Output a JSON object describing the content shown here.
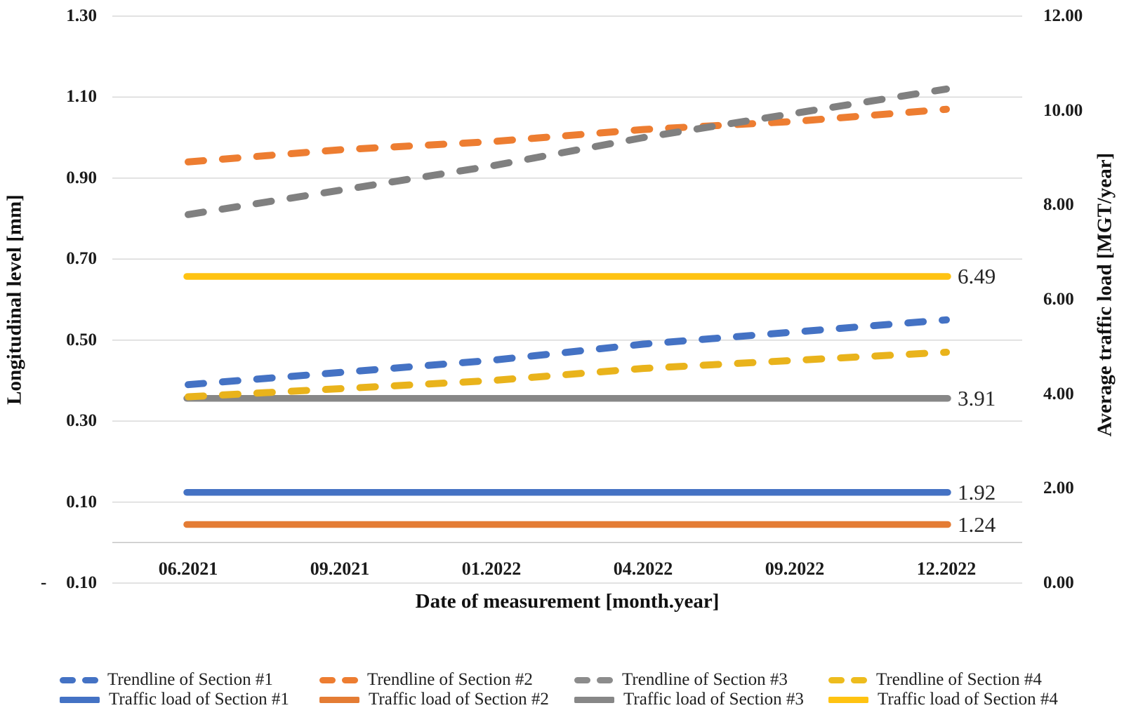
{
  "chart_data": {
    "type": "line",
    "title": "",
    "xlabel": "Date of measurement [month.year]",
    "ylabel_left": "Longitudinal level [mm]",
    "ylabel_right": "Average traffic load [MGT/year]",
    "categories": [
      "06.2021",
      "09.2021",
      "01.2022",
      "04.2022",
      "09.2022",
      "12.2022"
    ],
    "grid": true,
    "legend_position": "bottom",
    "left_axis": {
      "min": -0.1,
      "max": 1.3,
      "tick_step": 0.2,
      "ticks": [
        {
          "label": "1.30",
          "value": 1.3
        },
        {
          "label": "1.10",
          "value": 1.1
        },
        {
          "label": "0.90",
          "value": 0.9
        },
        {
          "label": "0.70",
          "value": 0.7
        },
        {
          "label": "0.50",
          "value": 0.5
        },
        {
          "label": "0.30",
          "value": 0.3
        },
        {
          "label": "0.10",
          "value": 0.1
        },
        {
          "label": "- 0.10",
          "value": -0.1
        }
      ]
    },
    "right_axis": {
      "min": 0.0,
      "max": 12.0,
      "tick_step": 2.0,
      "ticks": [
        {
          "label": "12.00",
          "value": 12.0
        },
        {
          "label": "10.00",
          "value": 10.0
        },
        {
          "label": "8.00",
          "value": 8.0
        },
        {
          "label": "6.00",
          "value": 6.0
        },
        {
          "label": "4.00",
          "value": 4.0
        },
        {
          "label": "2.00",
          "value": 2.0
        },
        {
          "label": "0.00",
          "value": 0.0
        }
      ]
    },
    "series": [
      {
        "name": "Trendline of Section #1",
        "axis": "left",
        "line": "dashed",
        "color": "#4472C4",
        "values": [
          0.39,
          0.42,
          0.45,
          0.49,
          0.52,
          0.55
        ]
      },
      {
        "name": "Trendline of Section #2",
        "axis": "left",
        "line": "dashed",
        "color": "#ED7D31",
        "values": [
          0.94,
          0.97,
          0.99,
          1.02,
          1.04,
          1.07
        ]
      },
      {
        "name": "Trendline of Section #3",
        "axis": "left",
        "line": "dashed",
        "color": "#808080",
        "values": [
          0.81,
          0.87,
          0.93,
          1.0,
          1.06,
          1.12
        ]
      },
      {
        "name": "Trendline of Section #4",
        "axis": "left",
        "line": "dashed",
        "color": "#E9B31B",
        "values": [
          0.36,
          0.38,
          0.4,
          0.43,
          0.45,
          0.47
        ]
      },
      {
        "name": "Traffic load of Section #1",
        "axis": "right",
        "line": "solid",
        "color": "#4472C4",
        "values": [
          1.92,
          1.92,
          1.92,
          1.92,
          1.92,
          1.92
        ],
        "data_label": "1.92"
      },
      {
        "name": "Traffic load of Section #2",
        "axis": "right",
        "line": "solid",
        "color": "#E47C34",
        "values": [
          1.24,
          1.24,
          1.24,
          1.24,
          1.24,
          1.24
        ],
        "data_label": "1.24"
      },
      {
        "name": "Traffic load of Section #3",
        "axis": "right",
        "line": "solid",
        "color": "#878787",
        "values": [
          3.91,
          3.91,
          3.91,
          3.91,
          3.91,
          3.91
        ],
        "data_label": "3.91"
      },
      {
        "name": "Traffic load of Section #4",
        "axis": "right",
        "line": "solid",
        "color": "#FFC312",
        "values": [
          6.49,
          6.49,
          6.49,
          6.49,
          6.49,
          6.49
        ],
        "data_label": "6.49"
      }
    ],
    "legend": {
      "items": [
        {
          "label": "Trendline of Section #1",
          "line": "dashed",
          "color": "#4472C4"
        },
        {
          "label": "Trendline of Section #2",
          "line": "dashed",
          "color": "#ED7D31"
        },
        {
          "label": "Trendline of Section #3",
          "line": "dashed",
          "color": "#8C8C8C"
        },
        {
          "label": "Trendline of Section #4",
          "line": "dashed",
          "color": "#EDBC1E"
        },
        {
          "label": "Traffic load of Section #1",
          "line": "solid",
          "color": "#4472C4"
        },
        {
          "label": "Traffic load of Section #2",
          "line": "solid",
          "color": "#E47C34"
        },
        {
          "label": "Traffic load of Section #3",
          "line": "solid",
          "color": "#878787"
        },
        {
          "label": "Traffic load of Section #4",
          "line": "solid",
          "color": "#FFC312"
        }
      ]
    },
    "colors": {
      "gridline": "#D9D9D9",
      "zero_axis_line": "#C6C6C6",
      "text": "#1b1b1b"
    }
  }
}
